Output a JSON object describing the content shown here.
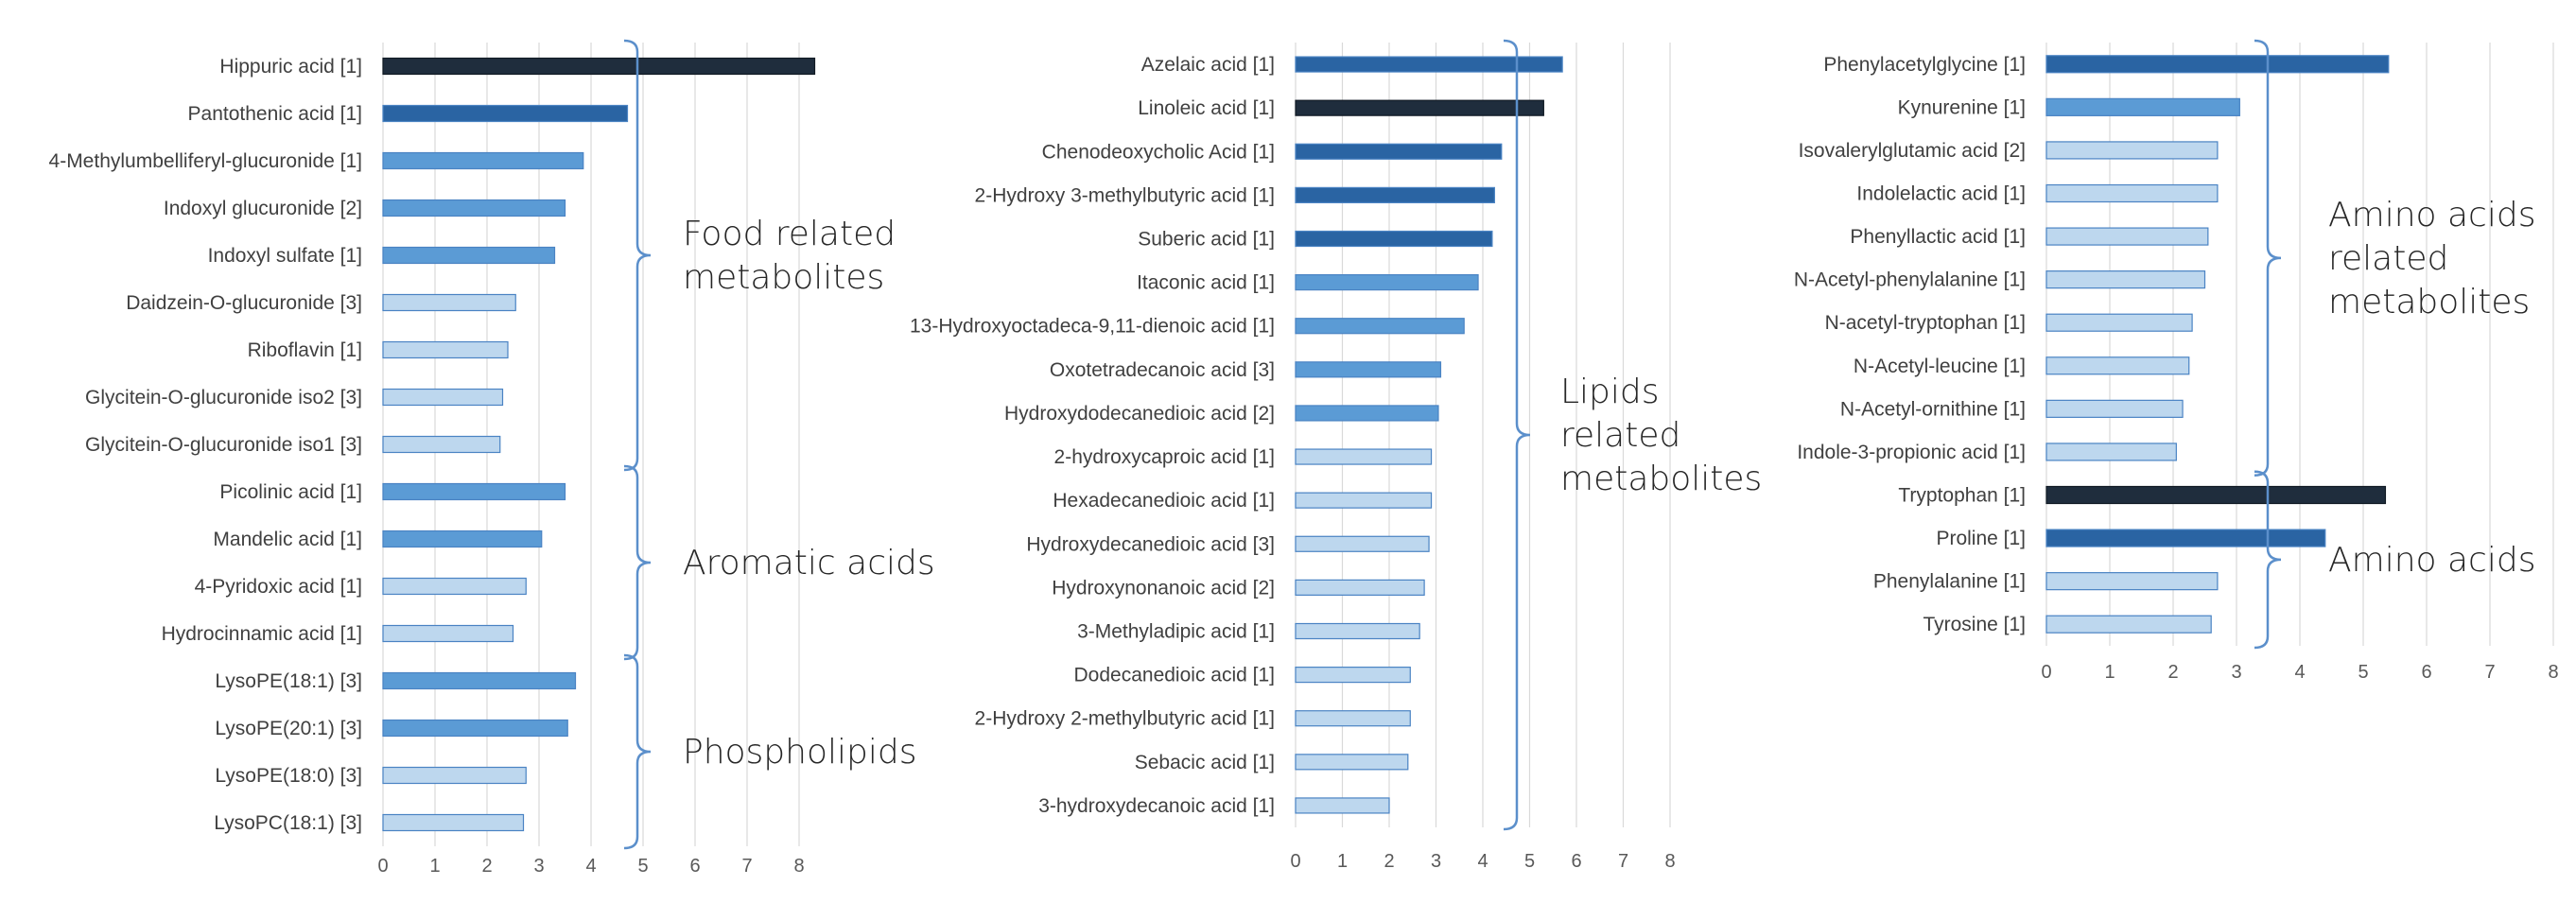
{
  "colors": {
    "level_darkest": "#1f2d3d",
    "level_dark": "#2a64a3",
    "level_mid": "#5b9bd5",
    "level_light": "#bdd7ee",
    "bar_border": "#4a83c3",
    "gridline": "#d9d9d9",
    "brace": "#5b8fcb"
  },
  "chart_data": [
    {
      "type": "bar",
      "orientation": "horizontal",
      "xlim": [
        0,
        8
      ],
      "x_ticks": [
        "0",
        "1",
        "2",
        "3",
        "4",
        "5",
        "6",
        "7",
        "8"
      ],
      "grid": true,
      "categories": [
        "Hippuric acid [1]",
        "Pantothenic acid [1]",
        "4-Methylumbelliferyl-glucuronide [1]",
        "Indoxyl glucuronide [2]",
        "Indoxyl sulfate [1]",
        "Daidzein-O-glucuronide [3]",
        "Riboflavin  [1]",
        "Glycitein-O-glucuronide iso2 [3]",
        "Glycitein-O-glucuronide iso1 [3]",
        "Picolinic acid [1]",
        "Mandelic acid [1]",
        "4-Pyridoxic acid [1]",
        "Hydrocinnamic acid [1]",
        "LysoPE(18:1) [3]",
        "LysoPE(20:1) [3]",
        "LysoPE(18:0) [3]",
        "LysoPC(18:1) [3]"
      ],
      "values": [
        8.3,
        4.7,
        3.85,
        3.5,
        3.3,
        2.55,
        2.4,
        2.3,
        2.25,
        3.5,
        3.05,
        2.75,
        2.5,
        3.7,
        3.55,
        2.75,
        2.7
      ],
      "shade_levels": [
        4,
        3,
        2,
        2,
        2,
        1,
        1,
        1,
        1,
        2,
        2,
        1,
        1,
        2,
        2,
        1,
        1
      ],
      "groups": [
        {
          "label_lines": [
            "Food related",
            "metabolites"
          ],
          "from": 0,
          "to": 8
        },
        {
          "label_lines": [
            "Aromatic acids"
          ],
          "from": 9,
          "to": 12
        },
        {
          "label_lines": [
            "Phospholipids"
          ],
          "from": 13,
          "to": 16
        }
      ]
    },
    {
      "type": "bar",
      "orientation": "horizontal",
      "xlim": [
        0,
        8
      ],
      "x_ticks": [
        "0",
        "1",
        "2",
        "3",
        "4",
        "5",
        "6",
        "7",
        "8"
      ],
      "grid": true,
      "categories": [
        "Azelaic acid [1]",
        "Linoleic acid [1]",
        "Chenodeoxycholic Acid [1]",
        "2-Hydroxy 3-methylbutyric acid [1]",
        "Suberic acid  [1]",
        "Itaconic acid [1]",
        "13-Hydroxyoctadeca-9,11-dienoic acid [1]",
        "Oxotetradecanoic acid [3]",
        "Hydroxydodecanedioic acid [2]",
        "2-hydroxycaproic acid [1]",
        "Hexadecanedioic acid [1]",
        "Hydroxydecanedioic acid [3]",
        "Hydroxynonanoic acid [2]",
        "3-Methyladipic acid  [1]",
        "Dodecanedioic acid [1]",
        "2-Hydroxy 2-methylbutyric acid [1]",
        "Sebacic acid  [1]",
        "3-hydroxydecanoic acid [1]"
      ],
      "values": [
        5.7,
        5.3,
        4.4,
        4.25,
        4.2,
        3.9,
        3.6,
        3.1,
        3.05,
        2.9,
        2.9,
        2.85,
        2.75,
        2.65,
        2.45,
        2.45,
        2.4,
        2.0
      ],
      "shade_levels": [
        3,
        4,
        3,
        3,
        3,
        2,
        2,
        2,
        2,
        1,
        1,
        1,
        1,
        1,
        1,
        1,
        1,
        1
      ],
      "groups": [
        {
          "label_lines": [
            "Lipids",
            "related",
            "metabolites"
          ],
          "from": 0,
          "to": 17
        }
      ]
    },
    {
      "type": "bar",
      "orientation": "horizontal",
      "xlim": [
        0,
        8
      ],
      "x_ticks": [
        "0",
        "1",
        "2",
        "3",
        "4",
        "5",
        "6",
        "7",
        "8"
      ],
      "grid": true,
      "categories": [
        "Phenylacetylglycine [1]",
        "Kynurenine [1]",
        "Isovalerylglutamic acid [2]",
        "Indolelactic acid [1]",
        "Phenyllactic acid [1]",
        "N-Acetyl-phenylalanine [1]",
        "N-acetyl-tryptophan [1]",
        "N-Acetyl-leucine  [1]",
        "N-Acetyl-ornithine  [1]",
        "Indole-3-propionic acid  [1]",
        "Tryptophan [1]",
        "Proline [1]",
        "Phenylalanine [1]",
        "Tyrosine [1]"
      ],
      "values": [
        5.4,
        3.05,
        2.7,
        2.7,
        2.55,
        2.5,
        2.3,
        2.25,
        2.15,
        2.05,
        5.35,
        4.4,
        2.7,
        2.6
      ],
      "shade_levels": [
        3,
        2,
        1,
        1,
        1,
        1,
        1,
        1,
        1,
        1,
        4,
        3,
        1,
        1
      ],
      "groups": [
        {
          "label_lines": [
            "Amino acids",
            "related",
            "metabolites"
          ],
          "from": 0,
          "to": 9
        },
        {
          "label_lines": [
            "Amino acids"
          ],
          "from": 10,
          "to": 13
        }
      ]
    }
  ]
}
